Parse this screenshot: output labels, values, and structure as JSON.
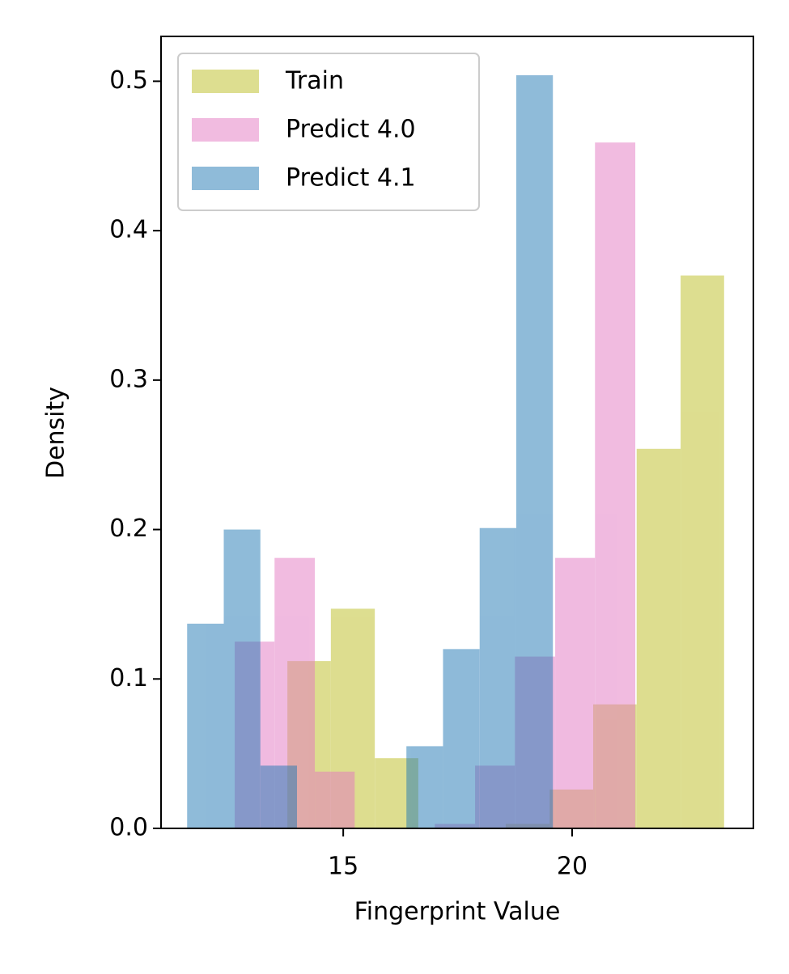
{
  "chart_data": {
    "type": "histogram",
    "xlabel": "Fingerprint Value",
    "ylabel": "Density",
    "xlim": [
      11.02,
      23.96
    ],
    "ylim": [
      0,
      0.53
    ],
    "xticks": [
      15,
      20
    ],
    "yticks": [
      {
        "value": 0,
        "label": "0.0"
      },
      0.1,
      0.2,
      0.3,
      0.4,
      0.5
    ],
    "alpha": 0.5,
    "legend": "upper left",
    "grid": false,
    "series": [
      {
        "name": "Train",
        "color": "#bcbd22",
        "bins": [
          13.78,
          14.73,
          15.69,
          16.64,
          17.6,
          18.55,
          19.51,
          20.46,
          21.41,
          22.37,
          23.32
        ],
        "values": [
          0.112,
          0.147,
          0.047,
          0,
          0,
          0.003,
          0.026,
          0.083,
          0.254,
          0.37
        ]
      },
      {
        "name": "Predict 4.0",
        "color": "#e377c2",
        "bins": [
          12.63,
          13.5,
          14.38,
          15.25,
          16.13,
          17.0,
          17.88,
          18.75,
          19.63,
          20.5,
          21.38
        ],
        "values": [
          0.125,
          0.181,
          0.038,
          0,
          0,
          0.003,
          0.042,
          0.115,
          0.181,
          0.459
        ]
      },
      {
        "name": "Predict 4.1",
        "color": "#1f77b4",
        "bins": [
          11.59,
          12.39,
          13.19,
          13.99,
          14.79,
          15.59,
          16.38,
          17.18,
          17.98,
          18.78,
          19.58
        ],
        "values": [
          0.137,
          0.2,
          0.042,
          0,
          0,
          0,
          0.055,
          0.12,
          0.201,
          0.504
        ]
      }
    ]
  }
}
